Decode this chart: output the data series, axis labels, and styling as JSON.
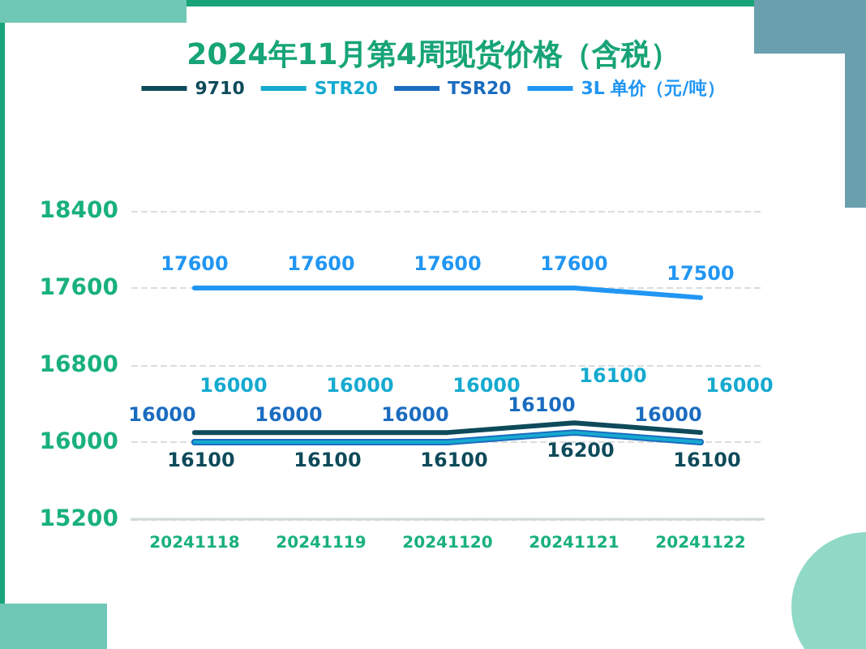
{
  "chart_data": {
    "type": "line",
    "title": "2024年11月第4周现货价格（含税）",
    "categories": [
      "20241118",
      "20241119",
      "20241120",
      "20241121",
      "20241122"
    ],
    "series": [
      {
        "name": "9710",
        "color": "#0e4a5a",
        "values": [
          16100,
          16100,
          16100,
          16200,
          16100
        ]
      },
      {
        "name": "STR20",
        "color": "#16aad0",
        "values": [
          16000,
          16000,
          16000,
          16100,
          16000
        ]
      },
      {
        "name": "TSR20",
        "color": "#1b6cc0",
        "values": [
          16000,
          16000,
          16000,
          16100,
          16000
        ]
      },
      {
        "name": "3L 单价（元/吨）",
        "color": "#2196f3",
        "values": [
          17600,
          17600,
          17600,
          17600,
          17500
        ]
      }
    ],
    "ylim": [
      15200,
      18400
    ],
    "yticks": [
      15200,
      16000,
      16800,
      17600,
      18400
    ],
    "grid": "y",
    "legend": "top",
    "data_labels": true,
    "marker": "none",
    "line_style": "solid"
  }
}
